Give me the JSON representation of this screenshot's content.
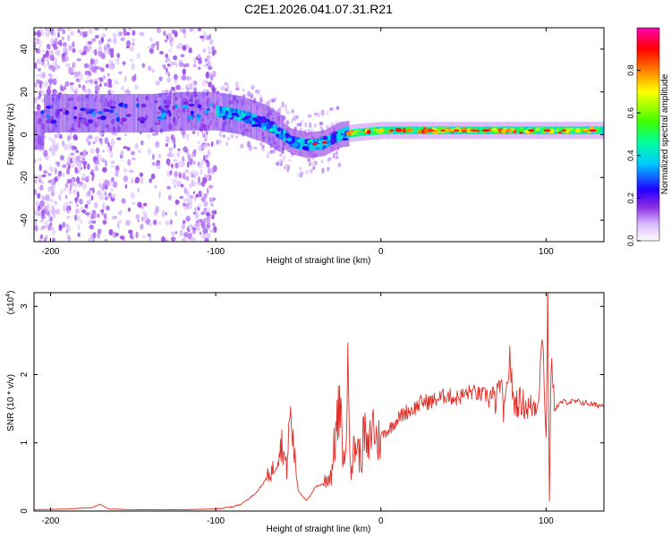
{
  "title": "C2E1.2026.041.07.31.R21",
  "chart_data": [
    {
      "type": "heatmap",
      "xlabel": "Height of straight line (km)",
      "ylabel": "Frequency (Hz)",
      "xlim": [
        -210,
        135
      ],
      "ylim": [
        -50,
        50
      ],
      "x_ticks": [
        -200,
        -100,
        0,
        100
      ],
      "y_ticks": [
        -40,
        -20,
        0,
        20,
        40
      ],
      "ridge": [
        {
          "x": -205,
          "y": 10
        },
        {
          "x": -180,
          "y": 10
        },
        {
          "x": -160,
          "y": 10
        },
        {
          "x": -140,
          "y": 10
        },
        {
          "x": -120,
          "y": 11
        },
        {
          "x": -100,
          "y": 11
        },
        {
          "x": -85,
          "y": 9
        },
        {
          "x": -70,
          "y": 5
        },
        {
          "x": -60,
          "y": 0
        },
        {
          "x": -55,
          "y": -3
        },
        {
          "x": -45,
          "y": -5
        },
        {
          "x": -35,
          "y": -4
        },
        {
          "x": -25,
          "y": 0
        },
        {
          "x": -15,
          "y": 1
        },
        {
          "x": 0,
          "y": 2
        },
        {
          "x": 40,
          "y": 2
        },
        {
          "x": 80,
          "y": 2
        },
        {
          "x": 100,
          "y": 2
        },
        {
          "x": 135,
          "y": 2
        }
      ],
      "colorbar": {
        "label": "Normalized spectral amplitude",
        "range": [
          0,
          1
        ],
        "ticks": [
          0.0,
          0.2,
          0.4,
          0.6,
          0.8
        ],
        "tick_labels": [
          "0.0",
          "0.2",
          "0.4",
          "0.6",
          "0.8"
        ],
        "colors": [
          "#ffffff",
          "#d8b8ff",
          "#8a2be2",
          "#2200ff",
          "#00c8ff",
          "#00ffa0",
          "#40ff00",
          "#ffff00",
          "#ff8000",
          "#ff0000",
          "#ff00b0"
        ]
      }
    },
    {
      "type": "line",
      "xlabel": "Height of straight line (km)",
      "ylabel": "SNR (10 * v/v)",
      "y_multiplier": "(x10",
      "y_multiplier_exp": "4",
      "xlim": [
        -210,
        135
      ],
      "ylim": [
        0,
        3.2
      ],
      "x_ticks": [
        -200,
        -100,
        0,
        100
      ],
      "y_ticks": [
        0,
        1,
        2,
        3
      ],
      "color": "#e0302a",
      "series": [
        {
          "name": "SNR",
          "x": [
            -210,
            -190,
            -175,
            -170,
            -165,
            -150,
            -120,
            -100,
            -90,
            -85,
            -80,
            -75,
            -70,
            -65,
            -60,
            -57,
            -55,
            -52,
            -50,
            -45,
            -42,
            -40,
            -35,
            -30,
            -28,
            -25,
            -22,
            -20,
            -18,
            -15,
            -12,
            -10,
            -8,
            -5,
            -2,
            0,
            5,
            10,
            15,
            20,
            25,
            30,
            35,
            40,
            45,
            50,
            55,
            60,
            65,
            70,
            72,
            75,
            78,
            80,
            85,
            90,
            95,
            98,
            100,
            101,
            102,
            103,
            105,
            110,
            115,
            120,
            125,
            130,
            135
          ],
          "y": [
            0.02,
            0.03,
            0.05,
            0.1,
            0.03,
            0.02,
            0.02,
            0.03,
            0.06,
            0.1,
            0.18,
            0.28,
            0.45,
            0.62,
            1.0,
            0.6,
            1.45,
            0.75,
            0.3,
            0.15,
            0.25,
            0.35,
            0.4,
            0.55,
            1.0,
            1.5,
            0.6,
            1.98,
            0.7,
            1.0,
            0.75,
            1.2,
            0.8,
            1.3,
            1.0,
            1.1,
            1.2,
            1.35,
            1.45,
            1.5,
            1.6,
            1.6,
            1.65,
            1.7,
            1.65,
            1.7,
            1.75,
            1.7,
            1.7,
            1.6,
            1.9,
            1.4,
            2.3,
            1.6,
            1.6,
            1.5,
            1.6,
            2.6,
            1.0,
            3.25,
            0.1,
            2.2,
            1.5,
            1.6,
            1.6,
            1.6,
            1.58,
            1.55,
            1.55
          ]
        }
      ]
    }
  ]
}
